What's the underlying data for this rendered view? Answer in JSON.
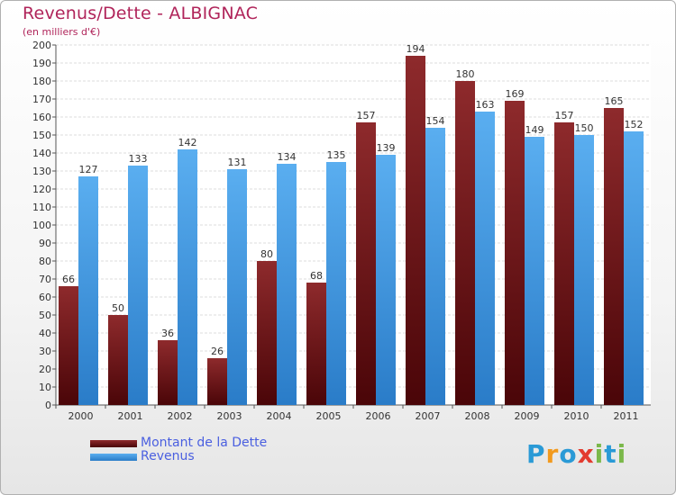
{
  "header": {
    "title": "Revenus/Dette - ALBIGNAC",
    "subtitle": "(en milliers d'€)"
  },
  "legend": {
    "items": [
      {
        "label": "Montant de la Dette",
        "color": "#6b0f12"
      },
      {
        "label": "Revenus",
        "color": "#3a8fdc"
      }
    ]
  },
  "logo": {
    "text": "Proxiti",
    "letters": [
      "P",
      "r",
      "o",
      "x",
      "i",
      "t",
      "i"
    ],
    "colors": [
      "#2a9ad6",
      "#f29a1e",
      "#2a9ad6",
      "#e33b2f",
      "#7bb84a",
      "#2a9ad6",
      "#7bb84a"
    ]
  },
  "chart_data": {
    "type": "bar",
    "title": "Revenus/Dette - ALBIGNAC",
    "subtitle": "(en milliers d'€)",
    "xlabel": "",
    "ylabel": "",
    "categories": [
      "2000",
      "2001",
      "2002",
      "2003",
      "2004",
      "2005",
      "2006",
      "2007",
      "2008",
      "2009",
      "2010",
      "2011"
    ],
    "ylim": [
      0,
      200
    ],
    "ytick_step": 10,
    "grid": true,
    "series": [
      {
        "name": "Montant de la Dette",
        "color": "#7a1a1e",
        "values": [
          66,
          50,
          36,
          26,
          80,
          68,
          157,
          194,
          180,
          169,
          157,
          165
        ]
      },
      {
        "name": "Revenus",
        "color": "#3a8fdc",
        "values": [
          127,
          133,
          142,
          131,
          134,
          135,
          139,
          154,
          163,
          149,
          150,
          152
        ]
      }
    ]
  }
}
